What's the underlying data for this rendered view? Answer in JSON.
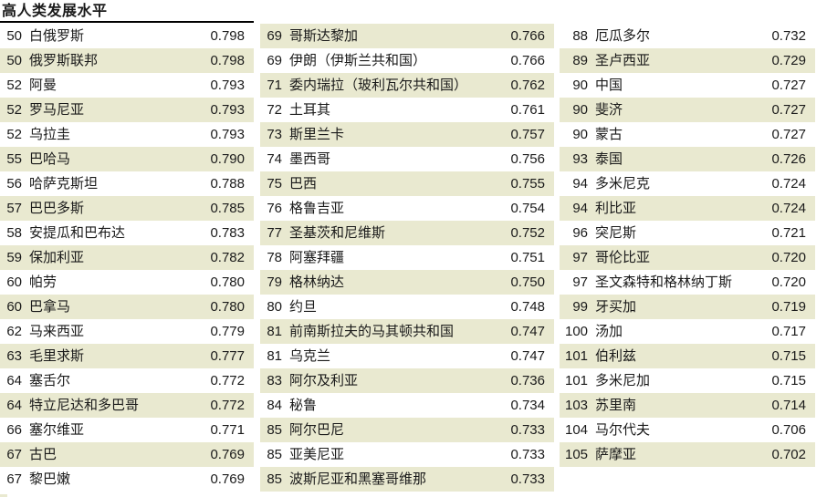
{
  "title": "高人类发展水平",
  "colors": {
    "row_shade": "#e9e9d0",
    "rule": "#000000",
    "text": "#1a1a1a"
  },
  "table": {
    "columns": [
      {
        "rows": [
          {
            "rank": "50",
            "name": "白俄罗斯",
            "value": "0.798"
          },
          {
            "rank": "50",
            "name": "俄罗斯联邦",
            "value": "0.798"
          },
          {
            "rank": "52",
            "name": "阿曼",
            "value": "0.793"
          },
          {
            "rank": "52",
            "name": "罗马尼亚",
            "value": "0.793"
          },
          {
            "rank": "52",
            "name": "乌拉圭",
            "value": "0.793"
          },
          {
            "rank": "55",
            "name": "巴哈马",
            "value": "0.790"
          },
          {
            "rank": "56",
            "name": "哈萨克斯坦",
            "value": "0.788"
          },
          {
            "rank": "57",
            "name": "巴巴多斯",
            "value": "0.785"
          },
          {
            "rank": "58",
            "name": "安提瓜和巴布达",
            "value": "0.783"
          },
          {
            "rank": "59",
            "name": "保加利亚",
            "value": "0.782"
          },
          {
            "rank": "60",
            "name": "帕劳",
            "value": "0.780"
          },
          {
            "rank": "60",
            "name": "巴拿马",
            "value": "0.780"
          },
          {
            "rank": "62",
            "name": "马来西亚",
            "value": "0.779"
          },
          {
            "rank": "63",
            "name": "毛里求斯",
            "value": "0.777"
          },
          {
            "rank": "64",
            "name": "塞舌尔",
            "value": "0.772"
          },
          {
            "rank": "64",
            "name": "特立尼达和多巴哥",
            "value": "0.772"
          },
          {
            "rank": "66",
            "name": "塞尔维亚",
            "value": "0.771"
          },
          {
            "rank": "67",
            "name": "古巴",
            "value": "0.769"
          },
          {
            "rank": "67",
            "name": "黎巴嫩",
            "value": "0.769"
          }
        ]
      },
      {
        "rows": [
          {
            "rank": "69",
            "name": "哥斯达黎加",
            "value": "0.766"
          },
          {
            "rank": "69",
            "name": "伊朗（伊斯兰共和国）",
            "value": "0.766"
          },
          {
            "rank": "71",
            "name": "委内瑞拉（玻利瓦尔共和国）",
            "value": "0.762"
          },
          {
            "rank": "72",
            "name": "土耳其",
            "value": "0.761"
          },
          {
            "rank": "73",
            "name": "斯里兰卡",
            "value": "0.757"
          },
          {
            "rank": "74",
            "name": "墨西哥",
            "value": "0.756"
          },
          {
            "rank": "75",
            "name": "巴西",
            "value": "0.755"
          },
          {
            "rank": "76",
            "name": "格鲁吉亚",
            "value": "0.754"
          },
          {
            "rank": "77",
            "name": "圣基茨和尼维斯",
            "value": "0.752"
          },
          {
            "rank": "78",
            "name": "阿塞拜疆",
            "value": "0.751"
          },
          {
            "rank": "79",
            "name": "格林纳达",
            "value": "0.750"
          },
          {
            "rank": "80",
            "name": "约旦",
            "value": "0.748"
          },
          {
            "rank": "81",
            "name": "前南斯拉夫的马其顿共和国",
            "value": "0.747"
          },
          {
            "rank": "81",
            "name": "乌克兰",
            "value": "0.747"
          },
          {
            "rank": "83",
            "name": "阿尔及利亚",
            "value": "0.736"
          },
          {
            "rank": "84",
            "name": "秘鲁",
            "value": "0.734"
          },
          {
            "rank": "85",
            "name": "阿尔巴尼",
            "value": "0.733"
          },
          {
            "rank": "85",
            "name": "亚美尼亚",
            "value": "0.733"
          },
          {
            "rank": "85",
            "name": "波斯尼亚和黑塞哥维那",
            "value": "0.733"
          }
        ]
      },
      {
        "rows": [
          {
            "rank": "88",
            "name": "厄瓜多尔",
            "value": "0.732"
          },
          {
            "rank": "89",
            "name": "圣卢西亚",
            "value": "0.729"
          },
          {
            "rank": "90",
            "name": "中国",
            "value": "0.727"
          },
          {
            "rank": "90",
            "name": "斐济",
            "value": "0.727"
          },
          {
            "rank": "90",
            "name": "蒙古",
            "value": "0.727"
          },
          {
            "rank": "93",
            "name": "泰国",
            "value": "0.726"
          },
          {
            "rank": "94",
            "name": "多米尼克",
            "value": "0.724"
          },
          {
            "rank": "94",
            "name": "利比亚",
            "value": "0.724"
          },
          {
            "rank": "96",
            "name": "突尼斯",
            "value": "0.721"
          },
          {
            "rank": "97",
            "name": "哥伦比亚",
            "value": "0.720"
          },
          {
            "rank": "97",
            "name": "圣文森特和格林纳丁斯",
            "value": "0.720"
          },
          {
            "rank": "99",
            "name": "牙买加",
            "value": "0.719"
          },
          {
            "rank": "100",
            "name": "汤加",
            "value": "0.717"
          },
          {
            "rank": "101",
            "name": "伯利兹",
            "value": "0.715"
          },
          {
            "rank": "101",
            "name": "多米尼加",
            "value": "0.715"
          },
          {
            "rank": "103",
            "name": "苏里南",
            "value": "0.714"
          },
          {
            "rank": "104",
            "name": "马尔代夫",
            "value": "0.706"
          },
          {
            "rank": "105",
            "name": "萨摩亚",
            "value": "0.702"
          }
        ]
      }
    ]
  }
}
